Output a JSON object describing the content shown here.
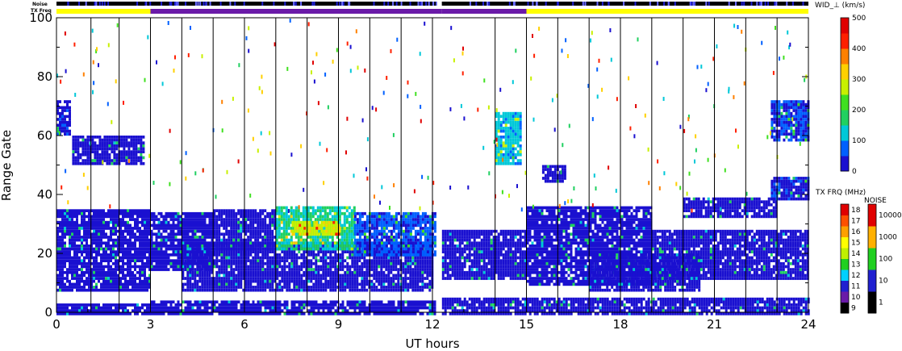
{
  "chart_data": {
    "type": "heatmap",
    "title": "",
    "xlabel": "UT hours",
    "ylabel": "Range Gate",
    "x_ticks": [
      "0",
      "3",
      "6",
      "9",
      "12",
      "15",
      "18",
      "21",
      "24"
    ],
    "y_ticks": [
      "0",
      "20",
      "40",
      "60",
      "80",
      "100"
    ],
    "xlim": [
      0,
      24
    ],
    "ylim": [
      0,
      100
    ],
    "grid": false,
    "top_bars": {
      "noise_label": "Noise",
      "txfreq_label": "TX Freq",
      "txfreq_segments": [
        {
          "start": 0,
          "end": 3.0,
          "color": "#ffff00"
        },
        {
          "start": 3.0,
          "end": 12.3,
          "color": "#6a1aa8"
        },
        {
          "start": 12.3,
          "end": 15.0,
          "color": "#6a1aa8"
        },
        {
          "start": 15.0,
          "end": 24,
          "color": "#ffff00"
        }
      ],
      "data_gap": {
        "start": 12.15,
        "end": 12.3
      }
    },
    "scan_marker_hours": [
      1.1,
      2.0,
      3.0,
      4.0,
      5.0,
      6.0,
      7.0,
      8.0,
      9.0,
      10.0,
      11.0,
      12.0,
      14.0,
      15.0,
      16.0,
      17.0,
      18.0,
      19.0,
      20.0,
      21.0,
      22.0,
      23.0
    ],
    "colormaps": {
      "width": {
        "title": "WID_⊥ (km/s)",
        "ticks": [
          "0",
          "100",
          "200",
          "300",
          "400",
          "500"
        ],
        "range": [
          0,
          500
        ],
        "colors": [
          "#1a10d0",
          "#0060ff",
          "#00c8d8",
          "#20d060",
          "#40e020",
          "#c8f000",
          "#ffd000",
          "#ff8000",
          "#ff2000",
          "#e00000"
        ]
      },
      "txfreq": {
        "title": "TX FRQ (MHz)",
        "ticks": [
          "9",
          "10",
          "11",
          "12",
          "13",
          "14",
          "15",
          "16",
          "17",
          "18"
        ],
        "colors": [
          "#000000",
          "#6a1aa8",
          "#2020d0",
          "#00d0ff",
          "#20d020",
          "#c0f000",
          "#ffff00",
          "#ffa000",
          "#ff5000",
          "#e00000"
        ]
      },
      "noise": {
        "title": "NOISE",
        "ticks": [
          "1",
          "10",
          "100",
          "1000",
          "10000"
        ],
        "colors": [
          "#000000",
          "#2020d0",
          "#20d020",
          "#ffb000",
          "#e00000"
        ]
      }
    },
    "echo_regions": [
      {
        "t0": 0.0,
        "t1": 3.0,
        "g0": 0,
        "g1": 3,
        "w": 0
      },
      {
        "t0": 0.0,
        "t1": 3.0,
        "g0": 8,
        "g1": 35,
        "w": 10
      },
      {
        "t0": 0.5,
        "t1": 2.8,
        "g0": 50,
        "g1": 60,
        "w": 20
      },
      {
        "t0": 0.0,
        "t1": 0.4,
        "g0": 60,
        "g1": 72,
        "w": 30
      },
      {
        "t0": 3.0,
        "t1": 5.0,
        "g0": 15,
        "g1": 34,
        "w": 10
      },
      {
        "t0": 4.0,
        "t1": 12.0,
        "g0": 8,
        "g1": 24,
        "w": 0
      },
      {
        "t0": 5.0,
        "t1": 7.0,
        "g0": 22,
        "g1": 35,
        "w": 20
      },
      {
        "t0": 7.0,
        "t1": 9.5,
        "g0": 22,
        "g1": 36,
        "w": 150
      },
      {
        "t0": 7.5,
        "t1": 9.0,
        "g0": 27,
        "g1": 31,
        "w": 280
      },
      {
        "t0": 9.5,
        "t1": 12.1,
        "g0": 20,
        "g1": 34,
        "w": 60
      },
      {
        "t0": 3.0,
        "t1": 12.1,
        "g0": 0,
        "g1": 4,
        "w": 0
      },
      {
        "t0": 12.3,
        "t1": 15.0,
        "g0": 12,
        "g1": 28,
        "w": 10
      },
      {
        "t0": 12.3,
        "t1": 24.0,
        "g0": 0,
        "g1": 5,
        "w": 0
      },
      {
        "t0": 14.0,
        "t1": 14.8,
        "g0": 50,
        "g1": 68,
        "w": 120
      },
      {
        "t0": 15.0,
        "t1": 19.0,
        "g0": 10,
        "g1": 36,
        "w": 10
      },
      {
        "t0": 17.0,
        "t1": 20.5,
        "g0": 8,
        "g1": 20,
        "w": 0
      },
      {
        "t0": 19.0,
        "t1": 24.0,
        "g0": 12,
        "g1": 28,
        "w": 10
      },
      {
        "t0": 20.0,
        "t1": 23.0,
        "g0": 33,
        "g1": 39,
        "w": 20
      },
      {
        "t0": 22.8,
        "t1": 24.0,
        "g0": 38,
        "g1": 46,
        "w": 40
      },
      {
        "t0": 22.8,
        "t1": 24.0,
        "g0": 58,
        "g1": 72,
        "w": 50
      },
      {
        "t0": 15.5,
        "t1": 16.2,
        "g0": 44,
        "g1": 50,
        "w": 20
      }
    ]
  }
}
